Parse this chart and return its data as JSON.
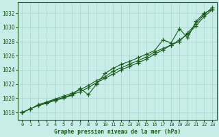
{
  "background_color": "#c8ece8",
  "grid_color": "#a8d4ce",
  "line_color": "#1a5c1a",
  "xlabel": "Graphe pression niveau de la mer (hPa)",
  "ylim": [
    1017.0,
    1033.5
  ],
  "xlim": [
    -0.5,
    23.5
  ],
  "yticks": [
    1018,
    1020,
    1022,
    1024,
    1026,
    1028,
    1030,
    1032
  ],
  "xticks": [
    0,
    1,
    2,
    3,
    4,
    5,
    6,
    7,
    8,
    9,
    10,
    11,
    12,
    13,
    14,
    15,
    16,
    17,
    18,
    19,
    20,
    21,
    22,
    23
  ],
  "line1": [
    1018.0,
    1018.5,
    1019.1,
    1019.4,
    1019.8,
    1020.1,
    1020.5,
    1020.9,
    1021.5,
    1022.2,
    1022.8,
    1023.4,
    1024.0,
    1024.5,
    1025.0,
    1025.5,
    1026.2,
    1026.8,
    1027.5,
    1028.2,
    1029.0,
    1030.2,
    1031.5,
    1032.5
  ],
  "line2": [
    1018.0,
    1018.5,
    1019.1,
    1019.5,
    1019.9,
    1020.3,
    1020.7,
    1021.2,
    1021.8,
    1022.5,
    1023.0,
    1023.8,
    1024.3,
    1024.8,
    1025.3,
    1025.8,
    1026.5,
    1027.0,
    1027.5,
    1028.0,
    1029.2,
    1030.5,
    1031.8,
    1032.8
  ],
  "line3": [
    1018.0,
    1018.5,
    1019.0,
    1019.3,
    1019.7,
    1020.0,
    1020.4,
    1021.4,
    1020.5,
    1022.0,
    1023.5,
    1024.2,
    1024.8,
    1025.2,
    1025.7,
    1026.2,
    1026.7,
    1028.2,
    1027.8,
    1029.8,
    1028.5,
    1030.8,
    1032.0,
    1032.5
  ]
}
